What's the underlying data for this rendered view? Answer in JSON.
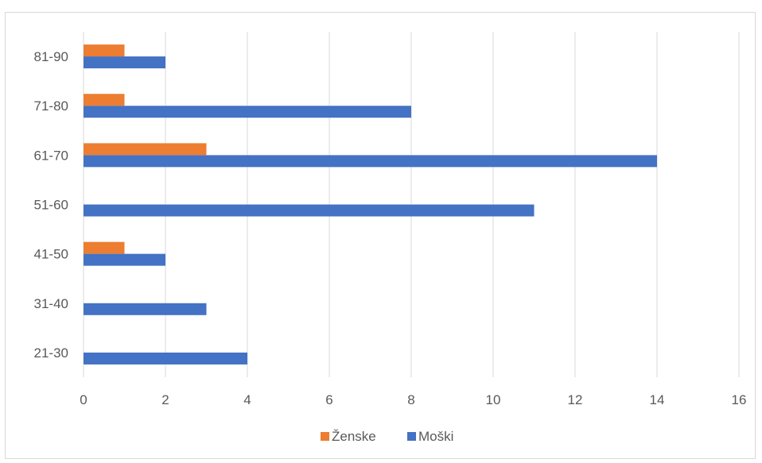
{
  "chart_data": {
    "type": "bar",
    "orientation": "horizontal",
    "categories": [
      "21-30",
      "31-40",
      "41-50",
      "51-60",
      "61-70",
      "71-80",
      "81-90"
    ],
    "series": [
      {
        "name": "Ženske",
        "color": "#ED7D31",
        "values": [
          0,
          0,
          1,
          0,
          3,
          1,
          1
        ]
      },
      {
        "name": "Moški",
        "color": "#4472C4",
        "values": [
          4,
          3,
          2,
          11,
          14,
          8,
          2
        ]
      }
    ],
    "xlim": [
      0,
      16
    ],
    "xticks": [
      "0",
      "2",
      "4",
      "6",
      "8",
      "10",
      "12",
      "14",
      "16"
    ],
    "grid": true,
    "legend_position": "bottom"
  }
}
